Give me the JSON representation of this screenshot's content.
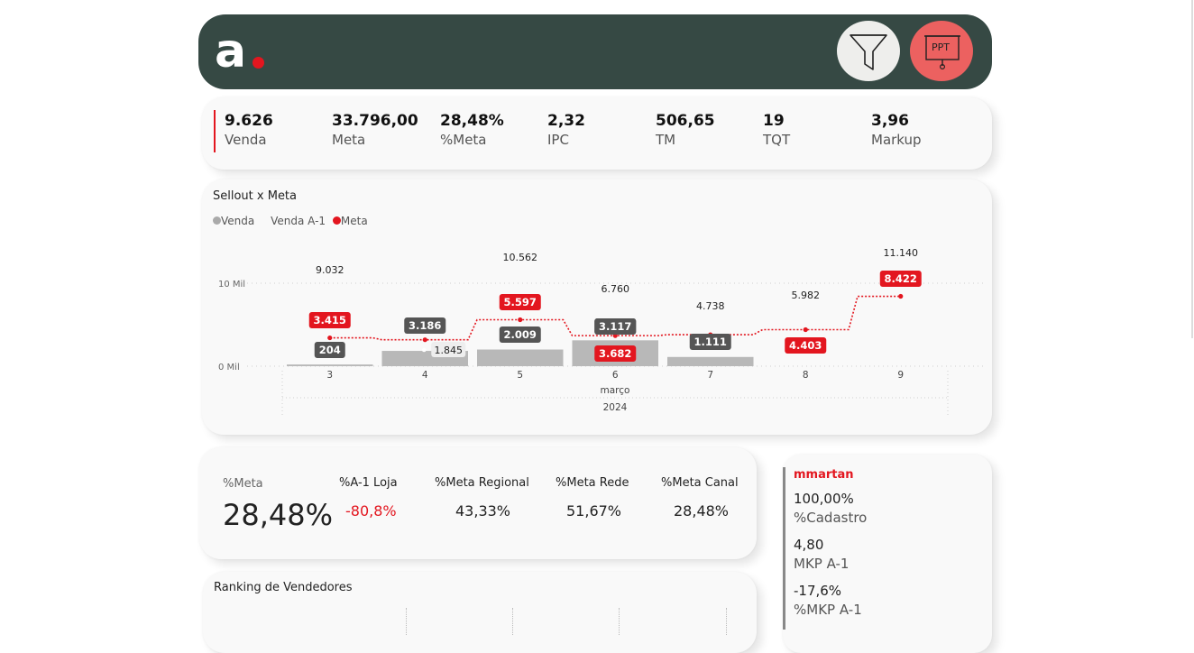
{
  "header": {
    "logo_letter": "a",
    "filter_icon": "funnel-icon",
    "ppt_icon": "presentation-icon",
    "ppt_label": "PPT",
    "colors": {
      "bar": "#364944",
      "accent": "#e3161f",
      "ppt": "#ec6160"
    }
  },
  "kpis": [
    {
      "value": "9.626",
      "label": "Venda"
    },
    {
      "value": "33.796,00",
      "label": "Meta"
    },
    {
      "value": "28,48%",
      "label": "%Meta"
    },
    {
      "value": "2,32",
      "label": "IPC"
    },
    {
      "value": "506,65",
      "label": "TM"
    },
    {
      "value": "19",
      "label": "TQT"
    },
    {
      "value": "3,96",
      "label": "Markup"
    }
  ],
  "sellout": {
    "title": "Sellout x Meta",
    "legend": [
      "Venda",
      "Venda A-1",
      "Meta"
    ]
  },
  "chart_data": {
    "type": "bar",
    "categories": [
      "3",
      "4",
      "5",
      "6",
      "7",
      "8",
      "9"
    ],
    "x_sub_label": "março",
    "x_year_label": "2024",
    "y_ticks": [
      "0 Mil",
      "10 Mil"
    ],
    "ylim": [
      0,
      10000
    ],
    "series": [
      {
        "name": "Venda",
        "values": [
          204,
          1845,
          2009,
          3117,
          1111,
          null,
          null
        ],
        "labels": [
          "204",
          "1.845",
          "2.009",
          "3.117",
          "1.111",
          "",
          ""
        ]
      },
      {
        "name": "Venda A-1",
        "values": [
          null,
          3186,
          null,
          3682,
          null,
          null,
          null
        ],
        "labels": [
          "",
          "3.186",
          "",
          "3.682",
          "",
          "",
          ""
        ]
      },
      {
        "name": "Meta",
        "values": [
          3415,
          3186,
          5597,
          3682,
          3800,
          4403,
          8422
        ],
        "labels": [
          "3.415",
          "",
          "5.597",
          "3.682",
          "",
          "4.403",
          "8.422"
        ]
      }
    ],
    "top_labels": [
      "9.032",
      "",
      "10.562",
      "6.760",
      "4.738",
      "5.982",
      "11.140"
    ]
  },
  "meta_panel": {
    "main_label": "%Meta",
    "main_value": "28,48%",
    "columns": [
      {
        "head": "%A-1 Loja",
        "value": "-80,8%",
        "color": "#e3161f"
      },
      {
        "head": "%Meta Regional",
        "value": "43,33%",
        "color": "#222222"
      },
      {
        "head": "%Meta Rede",
        "value": "51,67%",
        "color": "#222222"
      },
      {
        "head": "%Meta Canal",
        "value": "28,48%",
        "color": "#222222"
      }
    ]
  },
  "ranking": {
    "title": "Ranking de Vendedores"
  },
  "side_panel": {
    "user": "mmartan",
    "items": [
      {
        "value": "100,00%",
        "label": "%Cadastro"
      },
      {
        "value": "4,80",
        "label": "MKP A-1"
      },
      {
        "value": "-17,6%",
        "label": "%MKP A-1"
      }
    ]
  }
}
